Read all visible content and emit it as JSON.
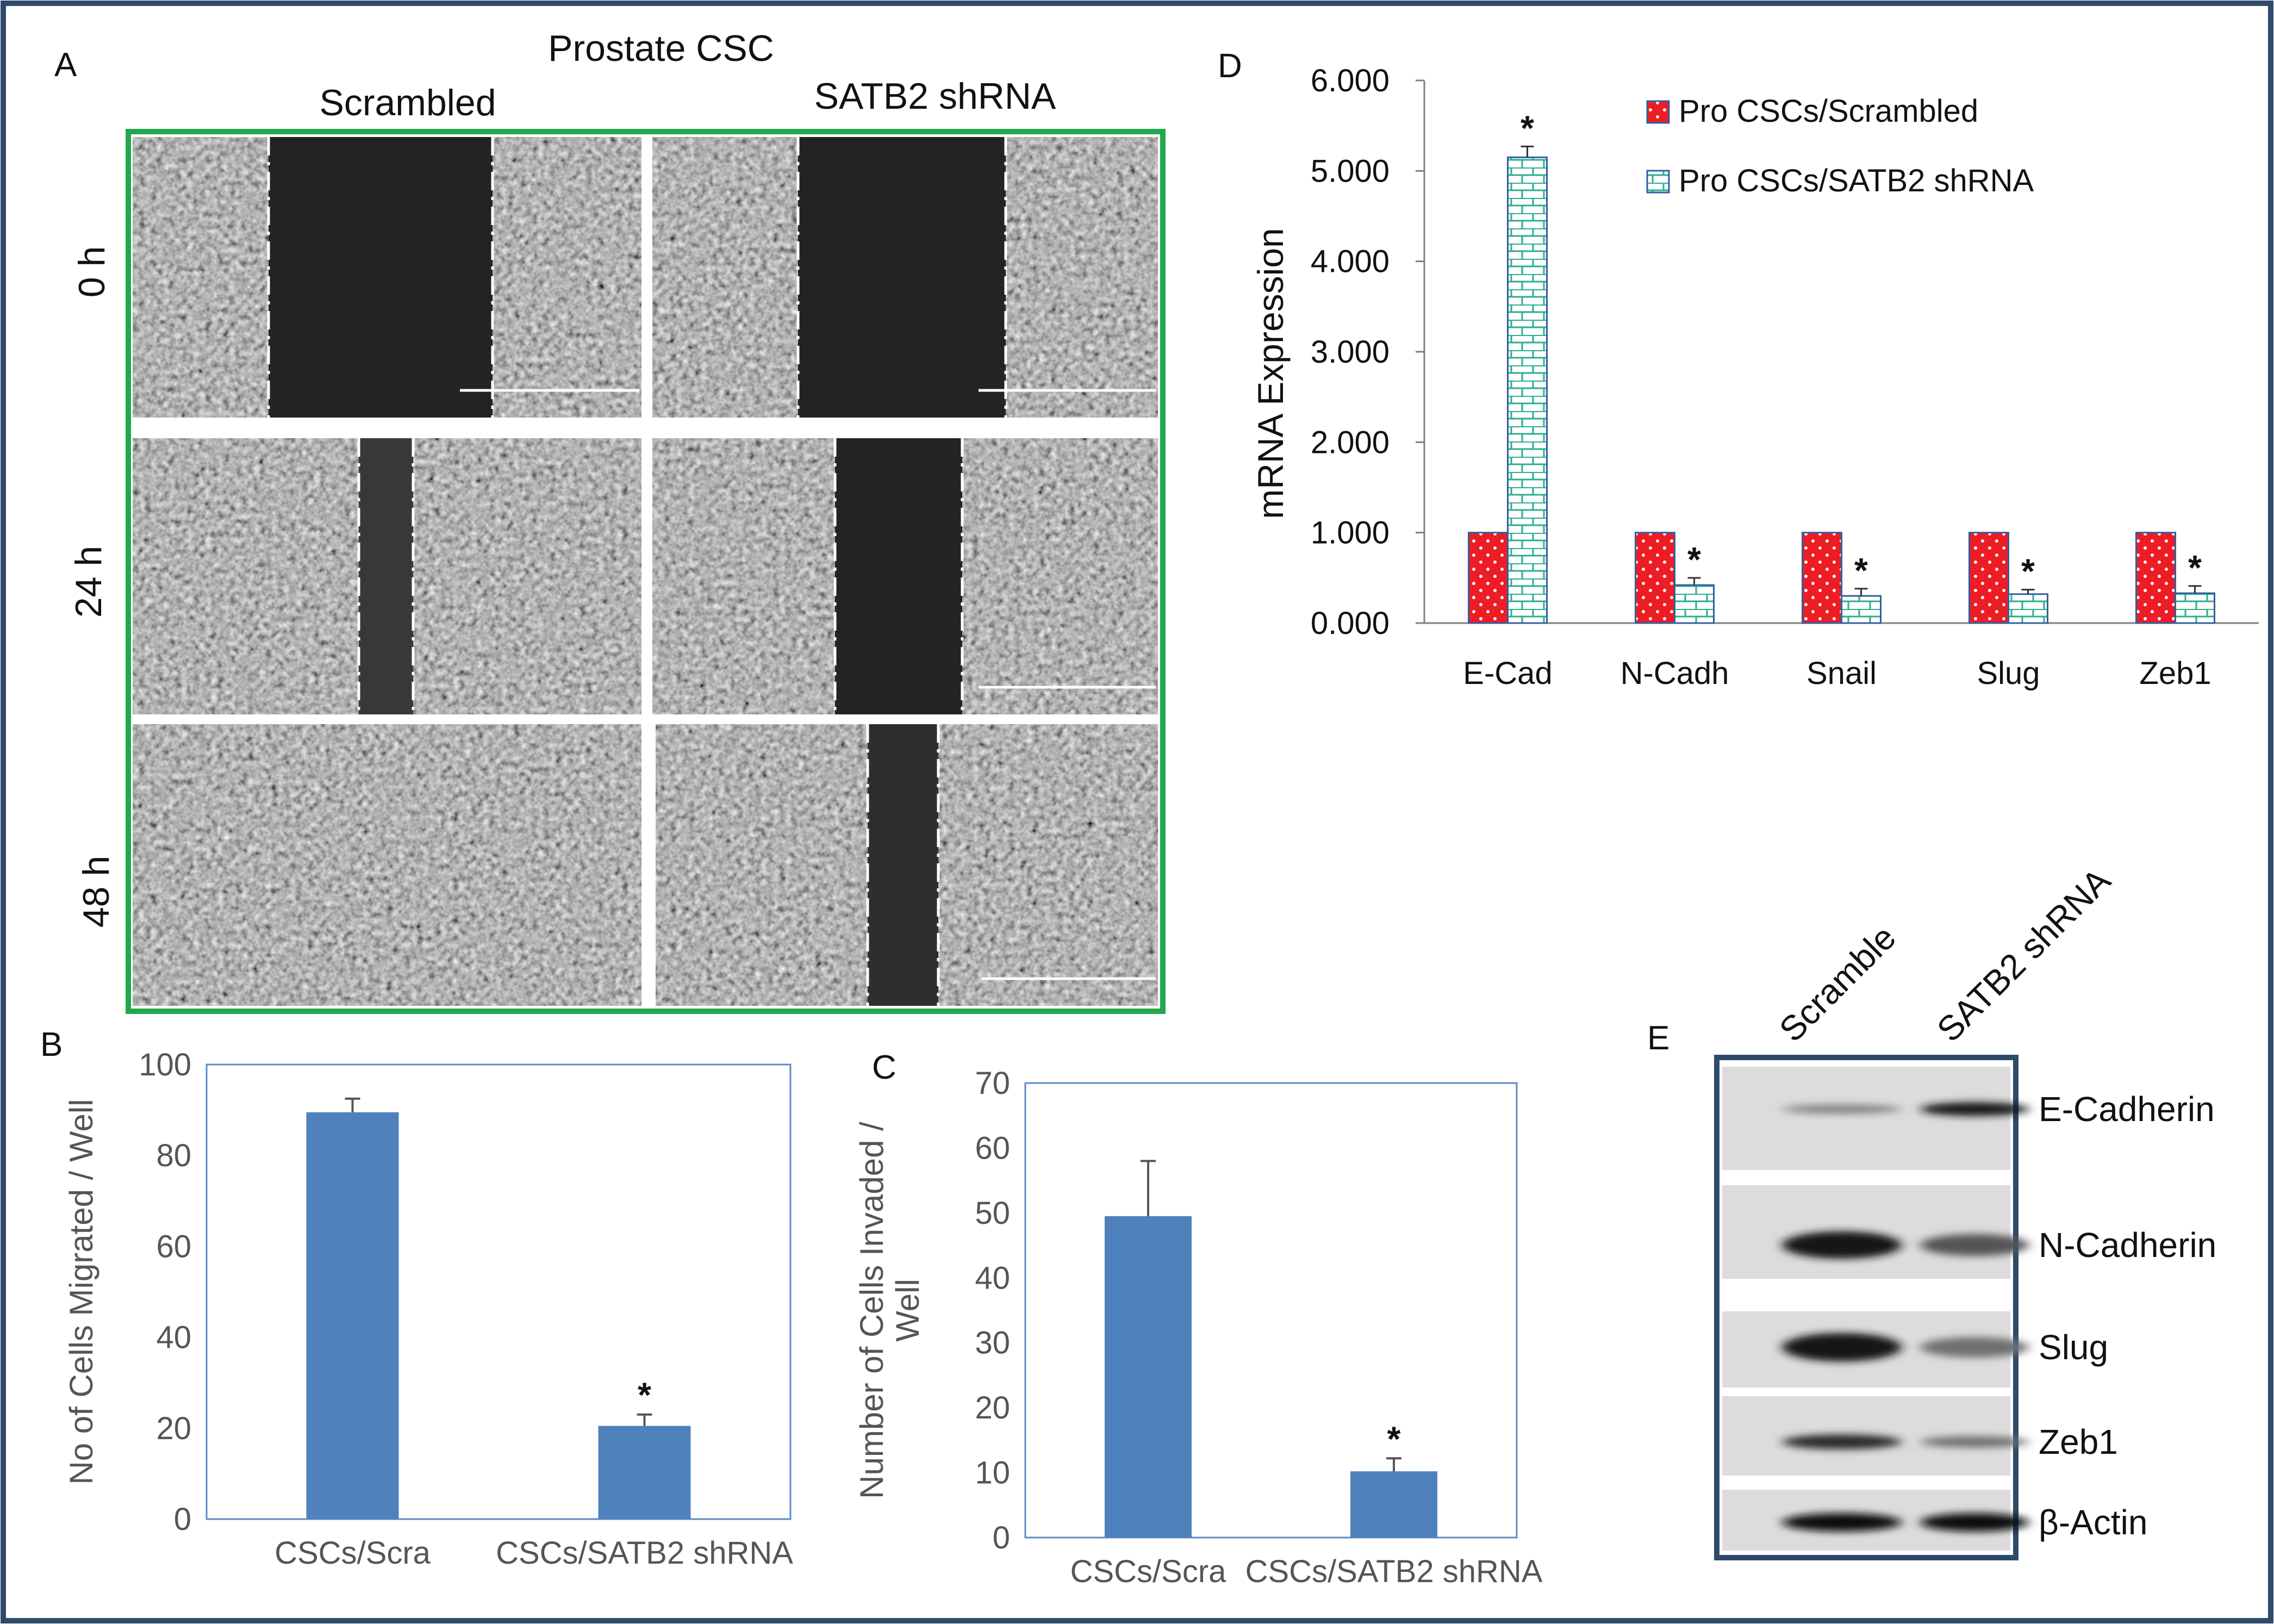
{
  "figure": {
    "panel_a": {
      "label": "A",
      "title": "Prostate CSC",
      "col_scrambled": "Scrambled",
      "col_shrna": "SATB2 shRNA",
      "rows": [
        "0 h",
        "24 h",
        "48 h"
      ]
    },
    "panel_d_label": "D",
    "panel_b_label": "B",
    "panel_c_label": "C",
    "panel_e": {
      "label": "E",
      "lanes": [
        "Scramble",
        "SATB2 shRNA"
      ],
      "proteins": [
        "E-Cadherin",
        "N-Cadherin",
        "Slug",
        "Zeb1",
        "β-Actin"
      ]
    },
    "significance_marker": "*"
  },
  "colors": {
    "frame": "#2e4a6b",
    "panel_a_border": "#22a84a",
    "bar_blue": "#4f81bd",
    "scrambled_red": "#ee1c24",
    "shrna_green": "#2bae8f"
  },
  "chart_data": [
    {
      "id": "B",
      "type": "bar",
      "categories": [
        "CSCs/Scra",
        "CSCs/SATB2 shRNA"
      ],
      "values": [
        89.5,
        20.5
      ],
      "errors": [
        3,
        2.5
      ],
      "significant": [
        false,
        true
      ],
      "ylabel": "No of Cells Migrated / Well",
      "ylim": [
        0,
        100
      ],
      "yticks": [
        0,
        20,
        40,
        60,
        80,
        100
      ],
      "xlabel": ""
    },
    {
      "id": "C",
      "type": "bar",
      "categories": [
        "CSCs/Scra",
        "CSCs/SATB2 shRNA"
      ],
      "values": [
        49.5,
        10.2
      ],
      "errors": [
        8.5,
        2
      ],
      "significant": [
        false,
        true
      ],
      "ylabel_lines": [
        "Number of Cells Invaded /",
        "Well"
      ],
      "ylim": [
        0,
        70
      ],
      "yticks": [
        0,
        10,
        20,
        30,
        40,
        50,
        60,
        70
      ],
      "xlabel": ""
    },
    {
      "id": "D",
      "type": "bar",
      "categories": [
        "E-Cad",
        "N-Cadh",
        "Snail",
        "Slug",
        "Zeb1"
      ],
      "series": [
        {
          "name": "Pro CSCs/Scrambled",
          "values": [
            1.0,
            1.0,
            1.0,
            1.0,
            1.0
          ],
          "errors": [
            0,
            0,
            0,
            0,
            0
          ],
          "significant": [
            false,
            false,
            false,
            false,
            false
          ]
        },
        {
          "name": "Pro CSCs/SATB2 shRNA",
          "values": [
            5.15,
            0.42,
            0.3,
            0.32,
            0.33
          ],
          "errors": [
            0.12,
            0.08,
            0.08,
            0.05,
            0.08
          ],
          "significant": [
            true,
            true,
            true,
            true,
            true
          ]
        }
      ],
      "ylabel": "mRNA Expression",
      "ylim": [
        0,
        6
      ],
      "yticks": [
        "0.000",
        "1.000",
        "2.000",
        "3.000",
        "4.000",
        "5.000",
        "6.000"
      ],
      "legend": "top-right"
    },
    {
      "id": "E",
      "type": "western_blot",
      "lanes": [
        "Scramble",
        "SATB2 shRNA"
      ],
      "bands": [
        {
          "protein": "E-Cadherin",
          "intensity": [
            0.35,
            0.95
          ]
        },
        {
          "protein": "N-Cadherin",
          "intensity": [
            0.95,
            0.6
          ]
        },
        {
          "protein": "Slug",
          "intensity": [
            0.95,
            0.45
          ]
        },
        {
          "protein": "Zeb1",
          "intensity": [
            0.85,
            0.45
          ]
        },
        {
          "protein": "β-Actin",
          "intensity": [
            1.0,
            1.0
          ]
        }
      ]
    }
  ]
}
